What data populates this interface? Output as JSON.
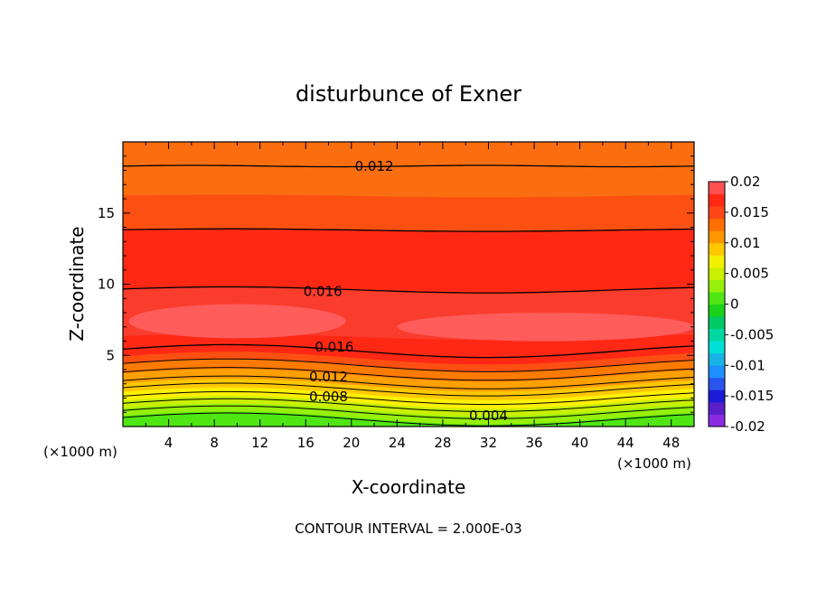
{
  "chart_data": {
    "type": "heatmap",
    "title": "disturbunce of Exner",
    "xlabel": "X-coordinate",
    "ylabel": "Z-coordinate",
    "x_unit_left": "(×1000 m)",
    "x_unit_right": "(×1000 m)",
    "xlim": [
      0,
      50
    ],
    "ylim": [
      0,
      20
    ],
    "x_ticks": [
      4,
      8,
      12,
      16,
      20,
      24,
      28,
      32,
      36,
      40,
      44,
      48
    ],
    "y_ticks": [
      5,
      10,
      15
    ],
    "contour_interval_text": "CONTOUR INTERVAL = 2.000E-03",
    "contour_labels": [
      {
        "text": "0.012",
        "x": 22,
        "z": 18.3
      },
      {
        "text": "0.016",
        "x": 17.5,
        "z": 9.5
      },
      {
        "text": "0.016",
        "x": 18.5,
        "z": 5.6
      },
      {
        "text": "0.012",
        "x": 18,
        "z": 3.5
      },
      {
        "text": "0.008",
        "x": 18,
        "z": 2.1
      },
      {
        "text": "0.004",
        "x": 32,
        "z": 0.75
      }
    ],
    "colorbar": {
      "min": -0.02,
      "max": 0.02,
      "tick_labels": [
        "0.02",
        "0.015",
        "0.01",
        "0.005",
        "0",
        "-0.005",
        "-0.01",
        "-0.015",
        "-0.02"
      ],
      "tick_values": [
        0.02,
        0.015,
        0.01,
        0.005,
        0,
        -0.005,
        -0.01,
        -0.015,
        -0.02
      ],
      "colors_bottom_to_top": [
        "#8a2be2",
        "#5a1fc8",
        "#1c1cd8",
        "#2a55ec",
        "#1e90ff",
        "#19b4e6",
        "#00e0d8",
        "#00d8a0",
        "#00c864",
        "#1ad21a",
        "#50e614",
        "#96f00a",
        "#c8f000",
        "#f0f000",
        "#ffc800",
        "#ff9600",
        "#ff6e00",
        "#ff4618",
        "#ff2814",
        "#ff5050"
      ]
    },
    "bands": [
      {
        "top": 20,
        "color": "#fa6e0f"
      },
      {
        "top": 16.2,
        "color": "#fc5012"
      },
      {
        "top": 13.8,
        "color": "#ff2814"
      },
      {
        "top": 9.6,
        "color": "#fa3c2c"
      },
      {
        "top": 6.3,
        "color": "#ff2814"
      },
      {
        "top": 4.8,
        "color": "#fc5012"
      },
      {
        "top": 4.3,
        "color": "#ff7a00"
      },
      {
        "top": 3.6,
        "color": "#ffa000"
      },
      {
        "top": 2.9,
        "color": "#ffc800"
      },
      {
        "top": 2.3,
        "color": "#fff000"
      },
      {
        "top": 1.7,
        "color": "#c8f000"
      },
      {
        "top": 1.15,
        "color": "#96f00a"
      },
      {
        "top": 0.6,
        "color": "#50e614"
      }
    ],
    "highlight_regions_color": "#ff5c5c"
  }
}
